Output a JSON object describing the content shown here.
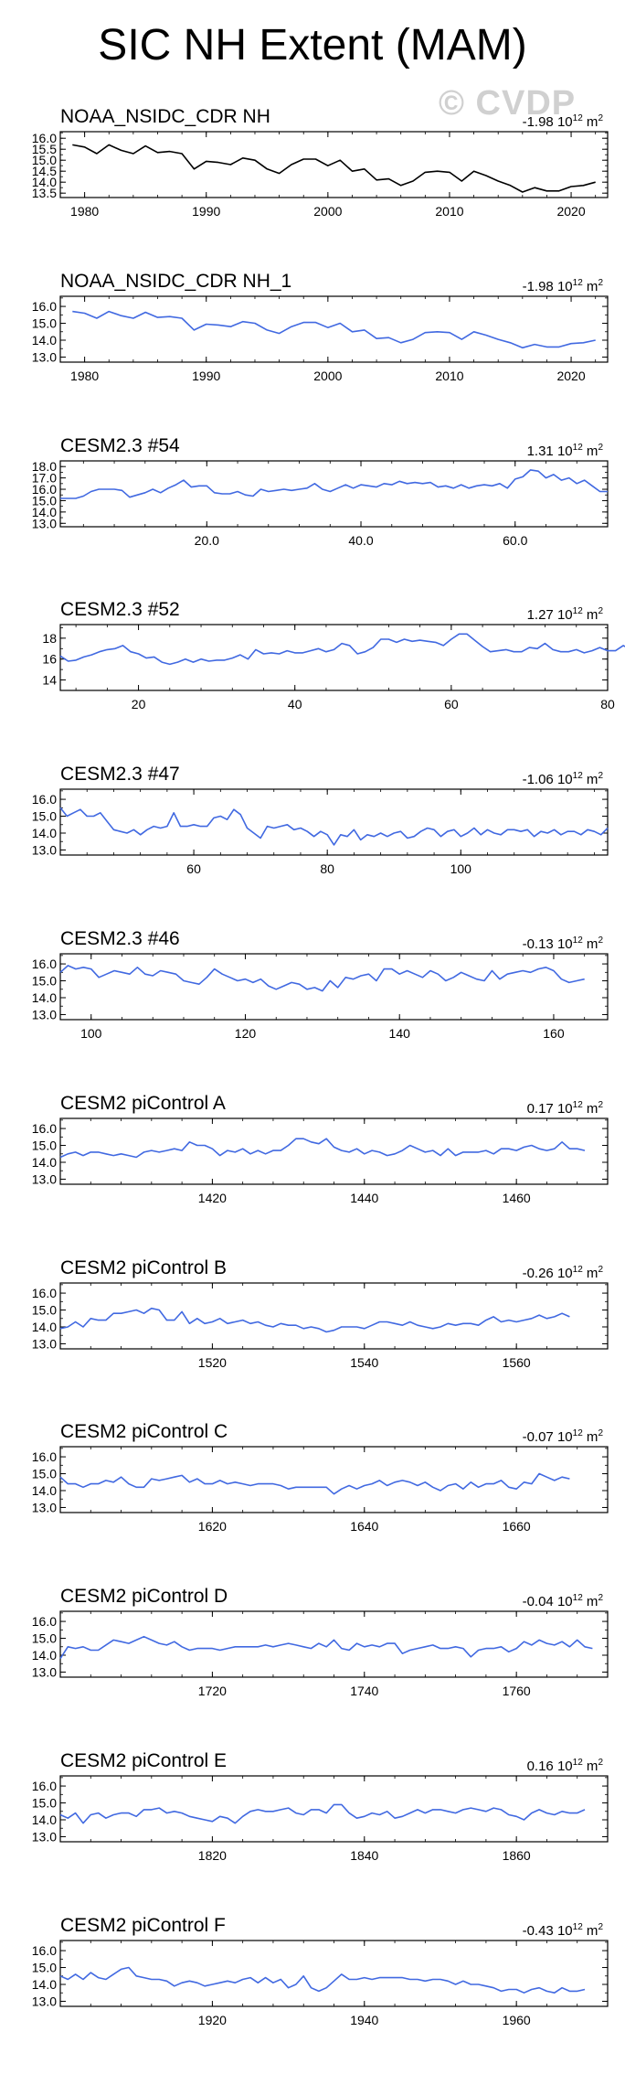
{
  "title": "SIC NH Extent (MAM)",
  "watermark": "© CVDP",
  "trend_unit_base": "10",
  "trend_unit_exp": "12",
  "trend_unit_suffix": "m",
  "trend_unit_sq": "2",
  "chart_data": [
    {
      "type": "line",
      "name": "NOAA_NSIDC_CDR NH",
      "trend": "-1.98",
      "color": "#000000",
      "xlim": [
        1978,
        2023
      ],
      "ylim": [
        13.3,
        16.3
      ],
      "yticks": [
        13.5,
        14.0,
        14.5,
        15.0,
        15.5,
        16.0
      ],
      "ytick_labels": [
        "13.5",
        "14.0",
        "14.5",
        "15.0",
        "15.5",
        "16.0"
      ],
      "xticks": [
        1980,
        1990,
        2000,
        2010,
        2020
      ],
      "xtick_labels": [
        "1980",
        "1990",
        "2000",
        "2010",
        "2020"
      ],
      "x0": 1979,
      "dx": 1,
      "values": [
        15.7,
        15.6,
        15.3,
        15.7,
        15.45,
        15.3,
        15.65,
        15.35,
        15.4,
        15.3,
        14.6,
        14.95,
        14.9,
        14.8,
        15.1,
        15.0,
        14.6,
        14.4,
        14.8,
        15.05,
        15.05,
        14.75,
        15.0,
        14.5,
        14.6,
        14.1,
        14.15,
        13.85,
        14.05,
        14.45,
        14.5,
        14.45,
        14.05,
        14.5,
        14.3,
        14.05,
        13.85,
        13.55,
        13.75,
        13.6,
        13.6,
        13.8,
        13.85,
        14.0
      ]
    },
    {
      "type": "line",
      "name": "NOAA_NSIDC_CDR NH_1",
      "trend": "-1.98",
      "color": "#4169e1",
      "xlim": [
        1978,
        2023
      ],
      "ylim": [
        12.7,
        16.6
      ],
      "yticks": [
        13.0,
        14.0,
        15.0,
        16.0
      ],
      "ytick_labels": [
        "13.0",
        "14.0",
        "15.0",
        "16.0"
      ],
      "xticks": [
        1980,
        1990,
        2000,
        2010,
        2020
      ],
      "xtick_labels": [
        "1980",
        "1990",
        "2000",
        "2010",
        "2020"
      ],
      "x0": 1979,
      "dx": 1,
      "values": [
        15.7,
        15.6,
        15.3,
        15.7,
        15.45,
        15.3,
        15.65,
        15.35,
        15.4,
        15.3,
        14.6,
        14.95,
        14.9,
        14.8,
        15.1,
        15.0,
        14.6,
        14.4,
        14.8,
        15.05,
        15.05,
        14.75,
        15.0,
        14.5,
        14.6,
        14.1,
        14.15,
        13.85,
        14.05,
        14.45,
        14.5,
        14.45,
        14.05,
        14.5,
        14.3,
        14.05,
        13.85,
        13.55,
        13.75,
        13.6,
        13.6,
        13.8,
        13.85,
        14.0
      ]
    },
    {
      "type": "line",
      "name": "CESM2.3 #54",
      "trend": "1.31",
      "color": "#4169e1",
      "xlim": [
        1,
        72
      ],
      "ylim": [
        12.7,
        18.5
      ],
      "yticks": [
        13.0,
        14.0,
        15.0,
        16.0,
        17.0,
        18.0
      ],
      "ytick_labels": [
        "13.0",
        "14.0",
        "15.0",
        "16.0",
        "17.0",
        "18.0"
      ],
      "xticks": [
        20,
        40,
        60
      ],
      "xtick_labels": [
        "20.0",
        "40.0",
        "60.0"
      ],
      "x0": 1,
      "dx": 1,
      "values": [
        15.2,
        15.2,
        15.2,
        15.4,
        15.8,
        16.0,
        16.0,
        16.0,
        15.9,
        15.3,
        15.5,
        15.7,
        16.0,
        15.7,
        16.1,
        16.4,
        16.8,
        16.2,
        16.3,
        16.3,
        15.7,
        15.6,
        15.6,
        15.8,
        15.5,
        15.4,
        16.0,
        15.8,
        15.9,
        16.0,
        15.9,
        16.0,
        16.1,
        16.5,
        16.0,
        15.8,
        16.1,
        16.4,
        16.1,
        16.4,
        16.3,
        16.2,
        16.5,
        16.4,
        16.7,
        16.5,
        16.6,
        16.5,
        16.6,
        16.2,
        16.3,
        16.1,
        16.4,
        16.1,
        16.3,
        16.4,
        16.3,
        16.5,
        16.1,
        16.9,
        17.1,
        17.7,
        17.6,
        17.0,
        17.3,
        16.8,
        17.0,
        16.5,
        16.8,
        16.3,
        15.8,
        15.8
      ]
    },
    {
      "type": "line",
      "name": "CESM2.3 #52",
      "trend": "1.27",
      "color": "#4169e1",
      "xlim": [
        10,
        80
      ],
      "ylim": [
        13.0,
        19.3
      ],
      "yticks": [
        14,
        16,
        18
      ],
      "ytick_labels": [
        "14",
        "16",
        "18"
      ],
      "xticks": [
        20,
        40,
        60,
        80
      ],
      "xtick_labels": [
        "20",
        "40",
        "60",
        "80"
      ],
      "x0": 10,
      "dx": 1,
      "values": [
        16.3,
        15.8,
        15.9,
        16.2,
        16.4,
        16.7,
        16.9,
        17.0,
        17.3,
        16.7,
        16.5,
        16.1,
        16.2,
        15.7,
        15.5,
        15.7,
        16.0,
        15.7,
        16.0,
        15.8,
        15.9,
        15.9,
        16.1,
        16.4,
        16.0,
        16.9,
        16.5,
        16.6,
        16.5,
        16.8,
        16.6,
        16.6,
        16.8,
        17.0,
        16.7,
        16.9,
        17.5,
        17.3,
        16.5,
        16.7,
        17.1,
        17.9,
        17.9,
        17.6,
        17.9,
        17.7,
        17.8,
        17.7,
        17.6,
        17.3,
        17.9,
        18.4,
        18.4,
        17.8,
        17.2,
        16.7,
        16.8,
        16.9,
        16.7,
        16.7,
        17.1,
        17.0,
        17.5,
        16.9,
        16.7,
        16.7,
        16.9,
        16.6,
        16.8,
        17.1,
        16.8,
        16.8,
        17.3,
        16.9,
        16.4
      ]
    },
    {
      "type": "line",
      "name": "CESM2.3 #47",
      "trend": "-1.06",
      "color": "#4169e1",
      "xlim": [
        40,
        122
      ],
      "ylim": [
        12.7,
        16.6
      ],
      "yticks": [
        13.0,
        14.0,
        15.0,
        16.0
      ],
      "ytick_labels": [
        "13.0",
        "14.0",
        "15.0",
        "16.0"
      ],
      "xticks": [
        60,
        80,
        100
      ],
      "xtick_labels": [
        "60",
        "80",
        "100"
      ],
      "x0": 40,
      "dx": 1,
      "values": [
        15.5,
        15.0,
        15.2,
        15.4,
        15.0,
        15.0,
        15.2,
        14.7,
        14.2,
        14.1,
        14.0,
        14.2,
        13.9,
        14.2,
        14.4,
        14.3,
        14.4,
        15.2,
        14.4,
        14.4,
        14.5,
        14.4,
        14.4,
        14.9,
        15.0,
        14.8,
        15.4,
        15.1,
        14.3,
        14.0,
        13.7,
        14.4,
        14.3,
        14.4,
        14.5,
        14.2,
        14.3,
        14.1,
        13.8,
        14.1,
        13.9,
        13.3,
        13.9,
        13.8,
        14.2,
        13.6,
        13.9,
        13.8,
        14.0,
        13.8,
        14.0,
        14.1,
        13.7,
        13.8,
        14.1,
        14.3,
        14.2,
        13.8,
        14.1,
        14.2,
        13.8,
        14.0,
        14.3,
        13.9,
        14.2,
        14.0,
        13.9,
        14.2,
        14.2,
        14.1,
        14.2,
        13.8,
        14.1,
        14.0,
        14.2,
        13.9,
        14.1,
        14.1,
        13.9,
        14.2,
        14.1,
        13.9,
        14.3
      ]
    },
    {
      "type": "line",
      "name": "CESM2.3 #46",
      "trend": "-0.13",
      "color": "#4169e1",
      "xlim": [
        96,
        167
      ],
      "ylim": [
        12.7,
        16.6
      ],
      "yticks": [
        13.0,
        14.0,
        15.0,
        16.0
      ],
      "ytick_labels": [
        "13.0",
        "14.0",
        "15.0",
        "16.0"
      ],
      "xticks": [
        100,
        120,
        140,
        160
      ],
      "xtick_labels": [
        "100",
        "120",
        "140",
        "160"
      ],
      "x0": 96,
      "dx": 1,
      "values": [
        15.5,
        15.9,
        15.7,
        15.8,
        15.7,
        15.2,
        15.4,
        15.6,
        15.5,
        15.4,
        15.8,
        15.4,
        15.3,
        15.6,
        15.5,
        15.4,
        15.0,
        14.9,
        14.8,
        15.2,
        15.7,
        15.4,
        15.2,
        15.0,
        15.1,
        14.9,
        15.1,
        14.7,
        14.5,
        14.7,
        14.9,
        14.8,
        14.5,
        14.6,
        14.4,
        15.0,
        14.6,
        15.2,
        15.1,
        15.3,
        15.4,
        15.0,
        15.7,
        15.7,
        15.4,
        15.6,
        15.4,
        15.2,
        15.6,
        15.4,
        15.0,
        15.2,
        15.5,
        15.3,
        15.1,
        15.0,
        15.6,
        15.1,
        15.4,
        15.5,
        15.6,
        15.5,
        15.7,
        15.8,
        15.6,
        15.1,
        14.9,
        15.0,
        15.1
      ]
    },
    {
      "type": "line",
      "name": "CESM2 piControl A",
      "trend": "0.17",
      "color": "#4169e1",
      "xlim": [
        1400,
        1472
      ],
      "ylim": [
        12.7,
        16.6
      ],
      "yticks": [
        13.0,
        14.0,
        15.0,
        16.0
      ],
      "ytick_labels": [
        "13.0",
        "14.0",
        "15.0",
        "16.0"
      ],
      "xticks": [
        1420,
        1440,
        1460
      ],
      "xtick_labels": [
        "1420",
        "1440",
        "1460"
      ],
      "x0": 1400,
      "dx": 1,
      "values": [
        14.3,
        14.5,
        14.6,
        14.4,
        14.6,
        14.6,
        14.5,
        14.4,
        14.5,
        14.4,
        14.3,
        14.6,
        14.7,
        14.6,
        14.7,
        14.8,
        14.7,
        15.2,
        15.0,
        15.0,
        14.8,
        14.4,
        14.7,
        14.6,
        14.8,
        14.5,
        14.7,
        14.5,
        14.7,
        14.7,
        15.0,
        15.4,
        15.4,
        15.2,
        15.1,
        15.4,
        14.9,
        14.7,
        14.6,
        14.8,
        14.5,
        14.7,
        14.6,
        14.4,
        14.5,
        14.7,
        15.0,
        14.8,
        14.6,
        14.7,
        14.4,
        14.8,
        14.4,
        14.6,
        14.6,
        14.6,
        14.7,
        14.5,
        14.8,
        14.8,
        14.7,
        14.9,
        15.0,
        14.8,
        14.7,
        14.8,
        15.2,
        14.8,
        14.8,
        14.7
      ]
    },
    {
      "type": "line",
      "name": "CESM2 piControl B",
      "trend": "-0.26",
      "color": "#4169e1",
      "xlim": [
        1500,
        1572
      ],
      "ylim": [
        12.7,
        16.6
      ],
      "yticks": [
        13.0,
        14.0,
        15.0,
        16.0
      ],
      "ytick_labels": [
        "13.0",
        "14.0",
        "15.0",
        "16.0"
      ],
      "xticks": [
        1520,
        1540,
        1560
      ],
      "xtick_labels": [
        "1520",
        "1540",
        "1560"
      ],
      "x0": 1500,
      "dx": 1,
      "values": [
        13.9,
        14.0,
        14.3,
        14.0,
        14.5,
        14.4,
        14.4,
        14.8,
        14.8,
        14.9,
        15.0,
        14.8,
        15.1,
        15.0,
        14.4,
        14.4,
        14.9,
        14.2,
        14.5,
        14.2,
        14.3,
        14.5,
        14.2,
        14.3,
        14.4,
        14.2,
        14.3,
        14.1,
        14.0,
        14.2,
        14.1,
        14.1,
        13.9,
        14.0,
        13.9,
        13.7,
        13.8,
        14.0,
        14.0,
        14.0,
        13.9,
        14.1,
        14.3,
        14.3,
        14.2,
        14.1,
        14.3,
        14.1,
        14.0,
        13.9,
        14.0,
        14.2,
        14.1,
        14.2,
        14.2,
        14.1,
        14.4,
        14.6,
        14.3,
        14.4,
        14.3,
        14.4,
        14.5,
        14.7,
        14.5,
        14.6,
        14.8,
        14.6
      ]
    },
    {
      "type": "line",
      "name": "CESM2 piControl C",
      "trend": "-0.07",
      "color": "#4169e1",
      "xlim": [
        1600,
        1672
      ],
      "ylim": [
        12.7,
        16.6
      ],
      "yticks": [
        13.0,
        14.0,
        15.0,
        16.0
      ],
      "ytick_labels": [
        "13.0",
        "14.0",
        "15.0",
        "16.0"
      ],
      "xticks": [
        1620,
        1640,
        1660
      ],
      "xtick_labels": [
        "1620",
        "1640",
        "1660"
      ],
      "x0": 1600,
      "dx": 1,
      "values": [
        14.8,
        14.4,
        14.4,
        14.2,
        14.4,
        14.4,
        14.6,
        14.5,
        14.8,
        14.4,
        14.2,
        14.2,
        14.7,
        14.6,
        14.7,
        14.8,
        14.9,
        14.5,
        14.7,
        14.4,
        14.4,
        14.6,
        14.4,
        14.5,
        14.4,
        14.3,
        14.4,
        14.4,
        14.4,
        14.3,
        14.1,
        14.2,
        14.2,
        14.2,
        14.2,
        14.2,
        13.8,
        14.1,
        14.3,
        14.1,
        14.3,
        14.4,
        14.6,
        14.3,
        14.5,
        14.6,
        14.5,
        14.3,
        14.5,
        14.2,
        14.0,
        14.3,
        14.4,
        14.1,
        14.5,
        14.2,
        14.4,
        14.4,
        14.6,
        14.2,
        14.1,
        14.5,
        14.4,
        15.0,
        14.8,
        14.6,
        14.8,
        14.7
      ]
    },
    {
      "type": "line",
      "name": "CESM2 piControl D",
      "trend": "-0.04",
      "color": "#4169e1",
      "xlim": [
        1700,
        1772
      ],
      "ylim": [
        12.7,
        16.6
      ],
      "yticks": [
        13.0,
        14.0,
        15.0,
        16.0
      ],
      "ytick_labels": [
        "13.0",
        "14.0",
        "15.0",
        "16.0"
      ],
      "xticks": [
        1720,
        1740,
        1760
      ],
      "xtick_labels": [
        "1720",
        "1740",
        "1760"
      ],
      "x0": 1700,
      "dx": 1,
      "values": [
        13.8,
        14.5,
        14.4,
        14.5,
        14.3,
        14.3,
        14.6,
        14.9,
        14.8,
        14.7,
        14.9,
        15.1,
        14.9,
        14.7,
        14.6,
        14.8,
        14.5,
        14.3,
        14.4,
        14.4,
        14.4,
        14.3,
        14.4,
        14.5,
        14.5,
        14.5,
        14.5,
        14.6,
        14.5,
        14.6,
        14.7,
        14.6,
        14.5,
        14.4,
        14.7,
        14.5,
        14.9,
        14.4,
        14.3,
        14.7,
        14.5,
        14.6,
        14.5,
        14.7,
        14.7,
        14.1,
        14.3,
        14.4,
        14.5,
        14.6,
        14.4,
        14.4,
        14.5,
        14.4,
        13.9,
        14.3,
        14.4,
        14.4,
        14.5,
        14.2,
        14.4,
        14.8,
        14.6,
        14.9,
        14.7,
        14.6,
        14.8,
        14.5,
        14.9,
        14.5,
        14.4
      ]
    },
    {
      "type": "line",
      "name": "CESM2 piControl E",
      "trend": "0.16",
      "color": "#4169e1",
      "xlim": [
        1800,
        1872
      ],
      "ylim": [
        12.7,
        16.6
      ],
      "yticks": [
        13.0,
        14.0,
        15.0,
        16.0
      ],
      "ytick_labels": [
        "13.0",
        "14.0",
        "15.0",
        "16.0"
      ],
      "xticks": [
        1820,
        1840,
        1860
      ],
      "xtick_labels": [
        "1820",
        "1840",
        "1860"
      ],
      "x0": 1800,
      "dx": 1,
      "values": [
        14.3,
        14.1,
        14.4,
        13.8,
        14.3,
        14.4,
        14.1,
        14.3,
        14.4,
        14.4,
        14.2,
        14.6,
        14.6,
        14.7,
        14.4,
        14.5,
        14.4,
        14.2,
        14.1,
        14.0,
        13.9,
        14.2,
        14.1,
        13.8,
        14.2,
        14.5,
        14.6,
        14.5,
        14.5,
        14.6,
        14.7,
        14.4,
        14.3,
        14.6,
        14.6,
        14.4,
        14.9,
        14.9,
        14.4,
        14.1,
        14.2,
        14.4,
        14.3,
        14.5,
        14.1,
        14.2,
        14.4,
        14.6,
        14.4,
        14.6,
        14.6,
        14.5,
        14.4,
        14.6,
        14.7,
        14.6,
        14.5,
        14.7,
        14.6,
        14.3,
        14.2,
        14.0,
        14.4,
        14.6,
        14.4,
        14.3,
        14.5,
        14.4,
        14.4,
        14.6
      ]
    },
    {
      "type": "line",
      "name": "CESM2 piControl F",
      "trend": "-0.43",
      "color": "#4169e1",
      "xlim": [
        1900,
        1972
      ],
      "ylim": [
        12.7,
        16.6
      ],
      "yticks": [
        13.0,
        14.0,
        15.0,
        16.0
      ],
      "ytick_labels": [
        "13.0",
        "14.0",
        "15.0",
        "16.0"
      ],
      "xticks": [
        1920,
        1940,
        1960
      ],
      "xtick_labels": [
        "1920",
        "1940",
        "1960"
      ],
      "x0": 1900,
      "dx": 1,
      "values": [
        14.5,
        14.3,
        14.6,
        14.3,
        14.7,
        14.4,
        14.3,
        14.6,
        14.9,
        15.0,
        14.5,
        14.4,
        14.3,
        14.3,
        14.2,
        13.9,
        14.1,
        14.2,
        14.1,
        13.9,
        14.0,
        14.1,
        14.2,
        14.1,
        14.3,
        14.4,
        14.1,
        14.4,
        14.1,
        14.3,
        13.8,
        14.0,
        14.5,
        13.8,
        13.6,
        13.8,
        14.2,
        14.6,
        14.3,
        14.3,
        14.4,
        14.3,
        14.4,
        14.4,
        14.4,
        14.4,
        14.3,
        14.3,
        14.2,
        14.3,
        14.3,
        14.2,
        14.0,
        14.2,
        14.0,
        14.0,
        13.9,
        13.8,
        13.6,
        13.7,
        13.7,
        13.5,
        13.7,
        13.8,
        13.6,
        13.5,
        13.8,
        13.6,
        13.6,
        13.7
      ]
    }
  ]
}
